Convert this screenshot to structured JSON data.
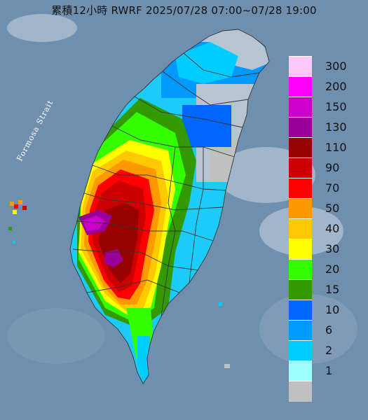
{
  "title": "累積12小時 RWRF 2025/07/28 07:00~07/28 19:00",
  "strait_label": "Formosa Strait",
  "legend": {
    "levels": [
      {
        "label": "300",
        "color": "#ffc8fa"
      },
      {
        "label": "200",
        "color": "#ff00ff"
      },
      {
        "label": "150",
        "color": "#cc00cc"
      },
      {
        "label": "130",
        "color": "#990099"
      },
      {
        "label": "110",
        "color": "#990000"
      },
      {
        "label": "90",
        "color": "#cc0000"
      },
      {
        "label": "70",
        "color": "#ff0000"
      },
      {
        "label": "50",
        "color": "#ff9900"
      },
      {
        "label": "40",
        "color": "#ffc800"
      },
      {
        "label": "30",
        "color": "#ffff00"
      },
      {
        "label": "20",
        "color": "#33ff00"
      },
      {
        "label": "15",
        "color": "#339900"
      },
      {
        "label": "10",
        "color": "#0066ff"
      },
      {
        "label": "6",
        "color": "#0099ff"
      },
      {
        "label": "2",
        "color": "#00ccff"
      },
      {
        "label": "1",
        "color": "#9effff"
      },
      {
        "label": "",
        "color": "#c0c0c0"
      }
    ]
  },
  "colors": {
    "sea": "#6f8fae",
    "land_dry": "#b8c4d2",
    "county_border": "#333333"
  }
}
